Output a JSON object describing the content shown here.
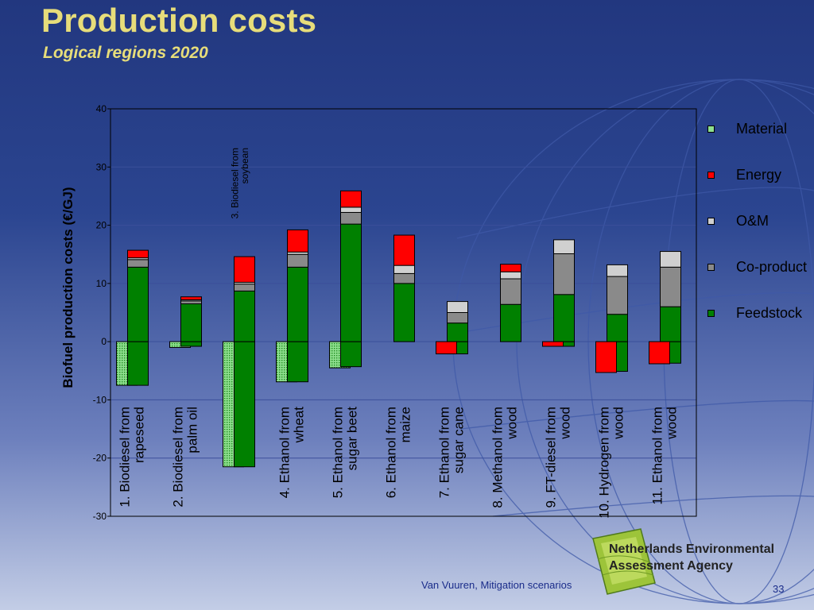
{
  "slide": {
    "title": "Production costs",
    "subtitle": "Logical regions 2020",
    "footer": "Van Vuuren, Mitigation scenarios",
    "page_number": "33",
    "agency_line1": "Netherlands Environmental",
    "agency_line2": "Assessment Agency"
  },
  "chart_data": {
    "type": "bar",
    "ylabel": "Biofuel production costs (€/GJ)",
    "ylim": [
      -30,
      40
    ],
    "yticks": [
      -30,
      -20,
      -10,
      0,
      10,
      20,
      30,
      40
    ],
    "categories": [
      [
        "1. Biodiesel from",
        "rapeseed"
      ],
      [
        "2. Biodiesel from",
        "palm oil"
      ],
      [
        "3. Biodiesel from",
        "soybean"
      ],
      [
        "4. Ethanol from",
        "wheat"
      ],
      [
        "5. Ethanol from",
        "sugar beet"
      ],
      [
        "6. Ethanol from",
        "maize"
      ],
      [
        "7. Ethanol from",
        "sugar cane"
      ],
      [
        "8. Methanol from",
        "wood"
      ],
      [
        "9. FT-diesel from",
        "wood"
      ],
      [
        "10. Hydrogen from",
        "wood"
      ],
      [
        "11. Ethanol from",
        "wood"
      ]
    ],
    "stack_order": [
      "Feedstock",
      "Co-product",
      "O&M",
      "Energy"
    ],
    "series": [
      {
        "name": "Material",
        "color": "#6fd46f",
        "pattern": "dotted",
        "values": [
          -7.5,
          -1,
          -21.5,
          -6.9,
          -4.5,
          0,
          0,
          0,
          0,
          0,
          0
        ]
      },
      {
        "name": "Energy",
        "color": "#ff0000",
        "values": [
          1.3,
          0.5,
          4.4,
          3.8,
          2.8,
          5.2,
          -2.1,
          1.3,
          -0.8,
          -5.3,
          -3.8
        ]
      },
      {
        "name": "O&M",
        "color": "#d0d0d0",
        "values": [
          0.3,
          0.2,
          0.3,
          0.4,
          0.9,
          1.4,
          1.9,
          1.2,
          2.4,
          2.0,
          2.7
        ]
      },
      {
        "name": "Co-product",
        "color": "#8a8a8a",
        "values": [
          1.3,
          0.5,
          1.2,
          2.2,
          2.0,
          1.7,
          1.8,
          4.4,
          7.0,
          6.5,
          6.8
        ]
      },
      {
        "name": "Feedstock",
        "color": "#008000",
        "values": [
          12.8,
          6.5,
          8.7,
          12.8,
          20.2,
          10.0,
          3.2,
          6.4,
          8.1,
          4.7,
          6.0
        ],
        "negative": [
          -7.5,
          -0.8,
          -21.5,
          -6.9,
          -4.3,
          0,
          -2.1,
          0,
          -0.8,
          -5.1,
          -3.7
        ]
      }
    ],
    "legend_position": "right"
  }
}
